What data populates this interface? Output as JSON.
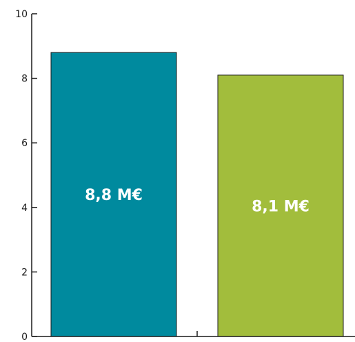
{
  "chart_data": {
    "type": "bar",
    "title": "",
    "xlabel": "",
    "ylabel": "",
    "categories": [
      "",
      ""
    ],
    "values": [
      8.8,
      8.1
    ],
    "data_labels": [
      "8,8 M€",
      "8,1 M€"
    ],
    "colors": [
      "#008a9e",
      "#a2bd3c"
    ],
    "ylim": [
      0,
      10
    ],
    "yticks": [
      0,
      2,
      4,
      6,
      8,
      10
    ],
    "ytick_labels": [
      "0",
      "2",
      "4",
      "6",
      "8",
      "10"
    ],
    "grid": false,
    "legend": "none"
  }
}
